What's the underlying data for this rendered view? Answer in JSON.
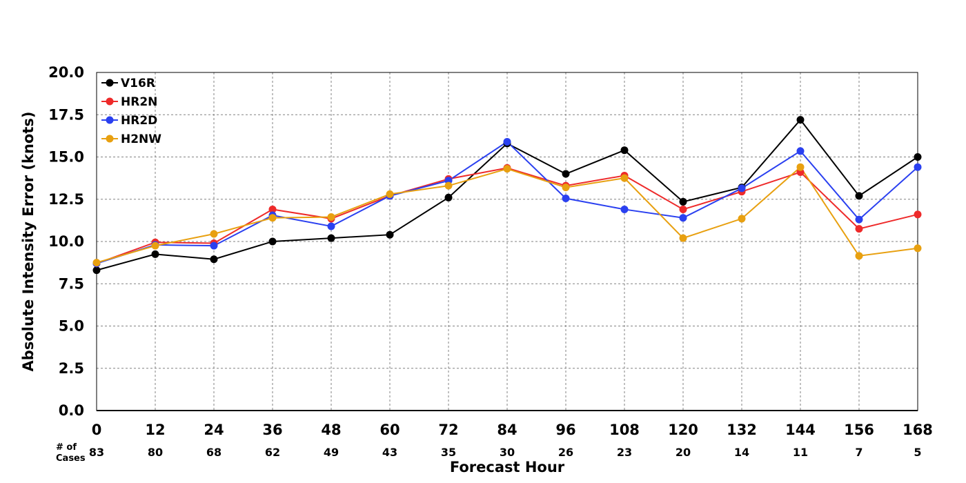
{
  "chart_data": {
    "type": "line",
    "title": "",
    "xlabel": "Forecast Hour",
    "ylabel": "Absolute Intensity Error (knots)",
    "x": [
      0,
      12,
      24,
      36,
      48,
      60,
      72,
      84,
      96,
      108,
      120,
      132,
      144,
      156,
      168
    ],
    "x_tick_labels": [
      "0",
      "12",
      "24",
      "36",
      "48",
      "60",
      "72",
      "84",
      "96",
      "108",
      "120",
      "132",
      "144",
      "156",
      "168"
    ],
    "xlim": [
      0,
      168
    ],
    "ylim": [
      0,
      20
    ],
    "y_ticks": [
      0,
      2.5,
      5,
      7.5,
      10,
      12.5,
      15,
      17.5,
      20
    ],
    "y_tick_labels": [
      "0.0",
      "2.5",
      "5.0",
      "7.5",
      "10.0",
      "12.5",
      "15.0",
      "17.5",
      "20.0"
    ],
    "grid": true,
    "legend_position": "top-left",
    "cases_title_line1": "# of",
    "cases_title_line2": "Cases",
    "cases": [
      "83",
      "80",
      "68",
      "62",
      "49",
      "43",
      "35",
      "30",
      "26",
      "23",
      "20",
      "14",
      "11",
      "7",
      "5"
    ],
    "series": [
      {
        "name": "V16R",
        "color": "#000000",
        "values": [
          8.3,
          9.25,
          8.95,
          10.0,
          10.2,
          10.4,
          12.6,
          15.8,
          14.0,
          15.4,
          12.35,
          13.2,
          17.2,
          12.7,
          15.0
        ]
      },
      {
        "name": "HR2N",
        "color": "#ee2a2a",
        "values": [
          8.7,
          9.95,
          9.9,
          11.9,
          11.35,
          12.7,
          13.7,
          14.35,
          13.3,
          13.9,
          11.9,
          12.95,
          14.1,
          10.75,
          11.6
        ]
      },
      {
        "name": "HR2D",
        "color": "#2a40f0",
        "values": [
          8.7,
          9.8,
          9.75,
          11.55,
          10.9,
          12.7,
          13.6,
          15.9,
          12.55,
          11.9,
          11.4,
          13.15,
          15.35,
          11.3,
          14.4
        ]
      },
      {
        "name": "H2NW",
        "color": "#e8a010",
        "values": [
          8.75,
          9.75,
          10.45,
          11.4,
          11.45,
          12.8,
          13.3,
          14.3,
          13.2,
          13.75,
          10.2,
          11.35,
          14.4,
          9.15,
          9.6
        ]
      }
    ]
  }
}
